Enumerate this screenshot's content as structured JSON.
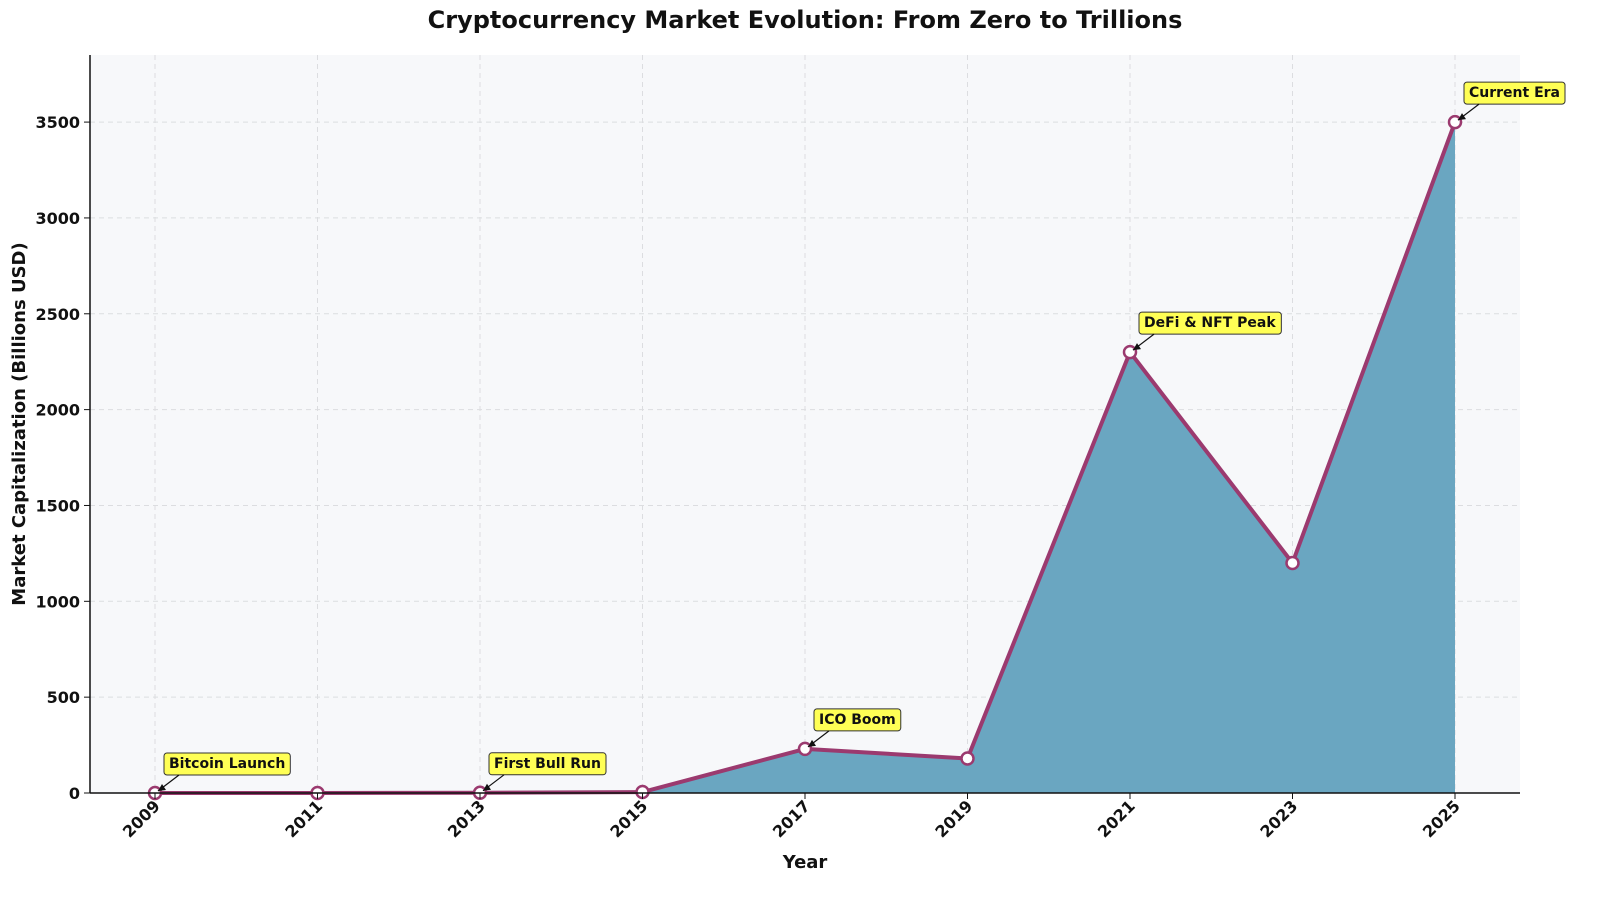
{
  "chart_data": {
    "type": "area",
    "title": "Cryptocurrency Market Evolution: From Zero to Trillions",
    "x_label": "Year",
    "y_label": "Market Capitalization (Billions USD)",
    "x": [
      2009,
      2011,
      2013,
      2015,
      2017,
      2019,
      2021,
      2023,
      2025
    ],
    "series": [
      {
        "color": "#9b3a6f",
        "fill_color": "#6aa6c1",
        "values": [
          0,
          0,
          1,
          5,
          230,
          180,
          2300,
          1200,
          3500
        ]
      }
    ],
    "xlim": [
      2008.2,
      2025.8
    ],
    "xticks": [
      2009,
      2011,
      2013,
      2015,
      2017,
      2019,
      2021,
      2023,
      2025
    ],
    "ylim": [
      0,
      3850
    ],
    "yticks": [
      0,
      500,
      1000,
      1500,
      2000,
      2500,
      3000,
      3500
    ],
    "grid": true,
    "annotations": [
      {
        "text": "Bitcoin Launch",
        "x": 2009
      },
      {
        "text": "First Bull Run",
        "x": 2013
      },
      {
        "text": "ICO Boom",
        "x": 2017
      },
      {
        "text": "DeFi & NFT Peak",
        "x": 2021
      },
      {
        "text": "Current Era",
        "x": 2025
      }
    ]
  }
}
